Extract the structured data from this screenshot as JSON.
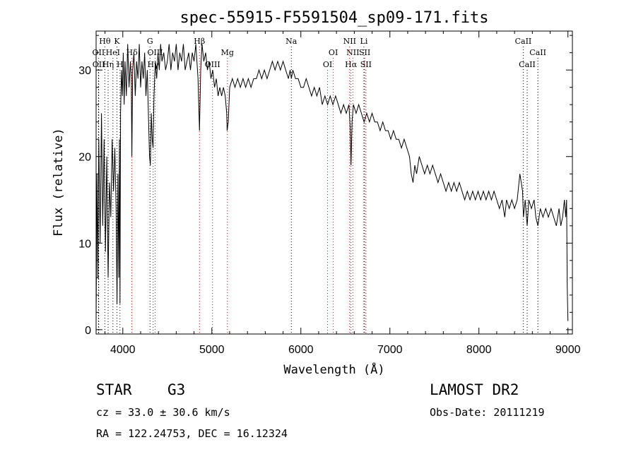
{
  "chart_data": {
    "type": "line",
    "title": "spec-55915-F5591504_sp09-171.fits",
    "xlabel": "Wavelength (Å)",
    "ylabel": "Flux (relative)",
    "xlim": [
      3700,
      9050
    ],
    "ylim": [
      -0.5,
      34.5
    ],
    "xticks": [
      4000,
      5000,
      6000,
      7000,
      8000,
      9000
    ],
    "yticks": [
      0,
      10,
      20,
      30
    ],
    "grid": false,
    "series": [
      {
        "points": [
          [
            3700,
            1
          ],
          [
            3710,
            18
          ],
          [
            3720,
            6
          ],
          [
            3730,
            22
          ],
          [
            3745,
            10
          ],
          [
            3760,
            25
          ],
          [
            3775,
            12
          ],
          [
            3790,
            22
          ],
          [
            3805,
            9
          ],
          [
            3820,
            20
          ],
          [
            3835,
            6
          ],
          [
            3850,
            17
          ],
          [
            3865,
            13
          ],
          [
            3880,
            22
          ],
          [
            3895,
            16
          ],
          [
            3910,
            21
          ],
          [
            3925,
            14
          ],
          [
            3935,
            3
          ],
          [
            3945,
            18
          ],
          [
            3955,
            6
          ],
          [
            3962,
            22
          ],
          [
            3968,
            3
          ],
          [
            3975,
            25
          ],
          [
            3985,
            30
          ],
          [
            3995,
            27
          ],
          [
            4005,
            32
          ],
          [
            4015,
            26
          ],
          [
            4025,
            31
          ],
          [
            4040,
            27
          ],
          [
            4055,
            33
          ],
          [
            4070,
            28
          ],
          [
            4085,
            31
          ],
          [
            4095,
            29
          ],
          [
            4102,
            20
          ],
          [
            4110,
            30
          ],
          [
            4125,
            32
          ],
          [
            4140,
            27
          ],
          [
            4155,
            31
          ],
          [
            4170,
            29
          ],
          [
            4185,
            33
          ],
          [
            4200,
            28
          ],
          [
            4215,
            31
          ],
          [
            4230,
            29
          ],
          [
            4245,
            32
          ],
          [
            4260,
            27
          ],
          [
            4275,
            30
          ],
          [
            4290,
            24
          ],
          [
            4300,
            20
          ],
          [
            4310,
            19
          ],
          [
            4320,
            25
          ],
          [
            4330,
            22
          ],
          [
            4340,
            21
          ],
          [
            4350,
            27
          ],
          [
            4365,
            31
          ],
          [
            4380,
            29
          ],
          [
            4395,
            32
          ],
          [
            4410,
            30
          ],
          [
            4425,
            33
          ],
          [
            4440,
            31
          ],
          [
            4460,
            32
          ],
          [
            4480,
            30
          ],
          [
            4500,
            31
          ],
          [
            4520,
            33
          ],
          [
            4540,
            30
          ],
          [
            4560,
            32
          ],
          [
            4580,
            31
          ],
          [
            4600,
            33
          ],
          [
            4620,
            30
          ],
          [
            4640,
            32
          ],
          [
            4660,
            31
          ],
          [
            4680,
            33
          ],
          [
            4700,
            30
          ],
          [
            4720,
            31
          ],
          [
            4740,
            32
          ],
          [
            4760,
            30
          ],
          [
            4780,
            32
          ],
          [
            4800,
            31
          ],
          [
            4820,
            33
          ],
          [
            4845,
            29
          ],
          [
            4861,
            23
          ],
          [
            4875,
            30
          ],
          [
            4890,
            33
          ],
          [
            4910,
            31
          ],
          [
            4930,
            32
          ],
          [
            4950,
            30
          ],
          [
            4970,
            31
          ],
          [
            4990,
            29
          ],
          [
            5010,
            30
          ],
          [
            5030,
            28
          ],
          [
            5050,
            29
          ],
          [
            5070,
            27
          ],
          [
            5090,
            28
          ],
          [
            5110,
            27
          ],
          [
            5130,
            28
          ],
          [
            5150,
            27
          ],
          [
            5167,
            25
          ],
          [
            5172,
            23
          ],
          [
            5184,
            24
          ],
          [
            5200,
            28
          ],
          [
            5230,
            29
          ],
          [
            5260,
            28
          ],
          [
            5290,
            29
          ],
          [
            5320,
            28
          ],
          [
            5350,
            29
          ],
          [
            5380,
            28
          ],
          [
            5410,
            29
          ],
          [
            5440,
            28
          ],
          [
            5470,
            29
          ],
          [
            5500,
            29
          ],
          [
            5530,
            30
          ],
          [
            5560,
            29
          ],
          [
            5590,
            30
          ],
          [
            5620,
            29
          ],
          [
            5650,
            30
          ],
          [
            5680,
            31
          ],
          [
            5710,
            30
          ],
          [
            5740,
            31
          ],
          [
            5770,
            30
          ],
          [
            5800,
            31
          ],
          [
            5830,
            30
          ],
          [
            5860,
            29
          ],
          [
            5880,
            30
          ],
          [
            5893,
            29
          ],
          [
            5910,
            30
          ],
          [
            5940,
            29
          ],
          [
            5970,
            29
          ],
          [
            6000,
            28
          ],
          [
            6030,
            28
          ],
          [
            6060,
            29
          ],
          [
            6090,
            28
          ],
          [
            6120,
            27
          ],
          [
            6150,
            28
          ],
          [
            6180,
            27
          ],
          [
            6210,
            28
          ],
          [
            6240,
            26
          ],
          [
            6270,
            27
          ],
          [
            6300,
            26
          ],
          [
            6330,
            27
          ],
          [
            6360,
            26
          ],
          [
            6390,
            27
          ],
          [
            6420,
            26
          ],
          [
            6450,
            25
          ],
          [
            6480,
            26
          ],
          [
            6510,
            25
          ],
          [
            6540,
            26
          ],
          [
            6555,
            23
          ],
          [
            6563,
            19
          ],
          [
            6575,
            24
          ],
          [
            6590,
            26
          ],
          [
            6620,
            25
          ],
          [
            6650,
            26
          ],
          [
            6680,
            25
          ],
          [
            6710,
            24
          ],
          [
            6740,
            25
          ],
          [
            6770,
            24
          ],
          [
            6800,
            25
          ],
          [
            6830,
            24
          ],
          [
            6860,
            24
          ],
          [
            6890,
            23
          ],
          [
            6920,
            24
          ],
          [
            6950,
            23
          ],
          [
            6980,
            23
          ],
          [
            7010,
            22
          ],
          [
            7040,
            23
          ],
          [
            7070,
            22
          ],
          [
            7100,
            22
          ],
          [
            7130,
            21
          ],
          [
            7160,
            22
          ],
          [
            7190,
            21
          ],
          [
            7220,
            20
          ],
          [
            7240,
            18
          ],
          [
            7260,
            17
          ],
          [
            7280,
            19
          ],
          [
            7300,
            18
          ],
          [
            7330,
            20
          ],
          [
            7360,
            19
          ],
          [
            7390,
            18
          ],
          [
            7420,
            19
          ],
          [
            7450,
            18
          ],
          [
            7480,
            19
          ],
          [
            7510,
            18
          ],
          [
            7540,
            17
          ],
          [
            7570,
            18
          ],
          [
            7600,
            17
          ],
          [
            7630,
            16
          ],
          [
            7660,
            17
          ],
          [
            7690,
            16
          ],
          [
            7720,
            17
          ],
          [
            7750,
            16
          ],
          [
            7780,
            17
          ],
          [
            7810,
            16
          ],
          [
            7840,
            15
          ],
          [
            7870,
            16
          ],
          [
            7900,
            15
          ],
          [
            7930,
            16
          ],
          [
            7960,
            15
          ],
          [
            7990,
            16
          ],
          [
            8020,
            15
          ],
          [
            8050,
            16
          ],
          [
            8080,
            15
          ],
          [
            8110,
            16
          ],
          [
            8140,
            15
          ],
          [
            8170,
            16
          ],
          [
            8200,
            15
          ],
          [
            8230,
            14
          ],
          [
            8260,
            15
          ],
          [
            8290,
            13
          ],
          [
            8310,
            15
          ],
          [
            8340,
            14
          ],
          [
            8370,
            15
          ],
          [
            8400,
            14
          ],
          [
            8430,
            15
          ],
          [
            8460,
            18
          ],
          [
            8490,
            16
          ],
          [
            8500,
            13
          ],
          [
            8520,
            15
          ],
          [
            8542,
            12
          ],
          [
            8560,
            15
          ],
          [
            8590,
            14
          ],
          [
            8620,
            15
          ],
          [
            8640,
            13
          ],
          [
            8662,
            12
          ],
          [
            8690,
            14
          ],
          [
            8720,
            13
          ],
          [
            8750,
            14
          ],
          [
            8780,
            13
          ],
          [
            8810,
            14
          ],
          [
            8840,
            13
          ],
          [
            8870,
            12
          ],
          [
            8900,
            14
          ],
          [
            8920,
            12
          ],
          [
            8940,
            13
          ],
          [
            8960,
            15
          ],
          [
            8975,
            13
          ],
          [
            8985,
            15
          ],
          [
            8992,
            5
          ],
          [
            9000,
            1
          ]
        ]
      }
    ],
    "lines": [
      {
        "label": "Hθ",
        "lambda": 3798,
        "row": 1,
        "color": "#000000"
      },
      {
        "label": "K",
        "lambda": 3934,
        "row": 1,
        "color": "#000000"
      },
      {
        "label": "G",
        "lambda": 4305,
        "row": 1,
        "color": "#000000"
      },
      {
        "label": "Hβ",
        "lambda": 4861,
        "row": 1,
        "color": "#cc0000"
      },
      {
        "label": "Na",
        "lambda": 5893,
        "row": 1,
        "color": "#000000"
      },
      {
        "label": "NII",
        "lambda": 6548,
        "row": 1,
        "color": "#cc0000"
      },
      {
        "label": "Li",
        "lambda": 6708,
        "row": 1,
        "color": "#000000"
      },
      {
        "label": "CaII",
        "lambda": 8498,
        "row": 1,
        "color": "#000000"
      },
      {
        "label": "OII",
        "lambda": 3727,
        "row": 2,
        "color": "#000000"
      },
      {
        "label": "HeI",
        "lambda": 3889,
        "row": 2,
        "color": "#000000"
      },
      {
        "label": "Hδ",
        "lambda": 4102,
        "row": 2,
        "color": "#cc0000"
      },
      {
        "label": "OIII",
        "lambda": 4363,
        "row": 2,
        "color": "#cc0000"
      },
      {
        "label": "Mg",
        "lambda": 5175,
        "row": 2,
        "color": "#cc0000"
      },
      {
        "label": "OI",
        "lambda": 6364,
        "row": 2,
        "color": "#cc0000"
      },
      {
        "label": "NII",
        "lambda": 6584,
        "row": 2,
        "color": "#cc0000"
      },
      {
        "label": "SII",
        "lambda": 6717,
        "row": 2,
        "color": "#cc0000"
      },
      {
        "label": "CaII",
        "lambda": 8662,
        "row": 2,
        "color": "#000000"
      },
      {
        "label": "OII",
        "lambda": 3729,
        "row": 3,
        "color": "#000000"
      },
      {
        "label": "Hη",
        "lambda": 3835,
        "row": 3,
        "color": "#000000"
      },
      {
        "label": "H",
        "lambda": 3968,
        "row": 3,
        "color": "#000000"
      },
      {
        "label": "Hγ",
        "lambda": 4340,
        "row": 3,
        "color": "#cc0000"
      },
      {
        "label": "OIII",
        "lambda": 5007,
        "row": 3,
        "color": "#cc0000"
      },
      {
        "label": "OI",
        "lambda": 6300,
        "row": 3,
        "color": "#cc0000"
      },
      {
        "label": "Hα",
        "lambda": 6563,
        "row": 3,
        "color": "#cc0000"
      },
      {
        "label": "SII",
        "lambda": 6731,
        "row": 3,
        "color": "#cc0000"
      },
      {
        "label": "CaII",
        "lambda": 8542,
        "row": 3,
        "color": "#000000"
      }
    ]
  },
  "info": {
    "object_class": "STAR",
    "subclass": "G3",
    "survey": "LAMOST DR2",
    "redshift": "cz = 33.0 ± 30.6 km/s",
    "obs_date": "Obs-Date: 20111219",
    "coords": "RA = 122.24753, DEC =  16.12324"
  }
}
